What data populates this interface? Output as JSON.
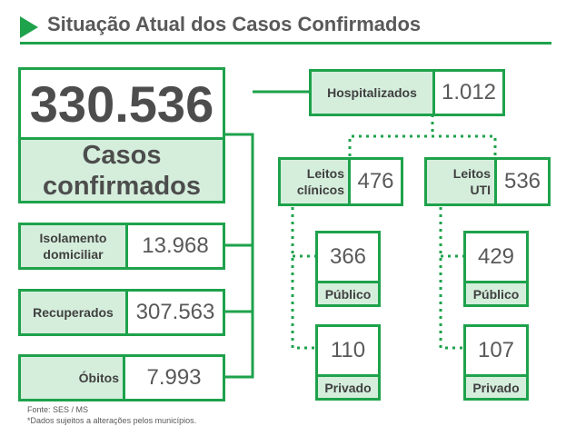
{
  "header": {
    "title": "Situação Atual dos Casos Confirmados"
  },
  "total": {
    "value": "330.536",
    "label_line1": "Casos",
    "label_line2": "confirmados"
  },
  "isolamento": {
    "label_line1": "Isolamento",
    "label_line2": "domiciliar",
    "value": "13.968"
  },
  "recuperados": {
    "label": "Recuperados",
    "value": "307.563"
  },
  "obitos": {
    "label": "Óbitos",
    "value": "7.993"
  },
  "hospitalizados": {
    "label": "Hospitalizados",
    "value": "1.012"
  },
  "leitos_clinicos": {
    "label_line1": "Leitos",
    "label_line2": "clínicos",
    "value": "476",
    "publico": {
      "value": "366",
      "label": "Público"
    },
    "privado": {
      "value": "110",
      "label": "Privado"
    }
  },
  "leitos_uti": {
    "label_line1": "Leitos",
    "label_line2": "UTI",
    "value": "536",
    "publico": {
      "value": "429",
      "label": "Público"
    },
    "privado": {
      "value": "107",
      "label": "Privado"
    }
  },
  "footer": {
    "source": "Fonte: SES / MS",
    "note": "*Dados sujeitos a alterações pelos municípios."
  },
  "colors": {
    "accent": "#1ea24b",
    "label_bg": "#d5eedc",
    "text": "#595959"
  }
}
